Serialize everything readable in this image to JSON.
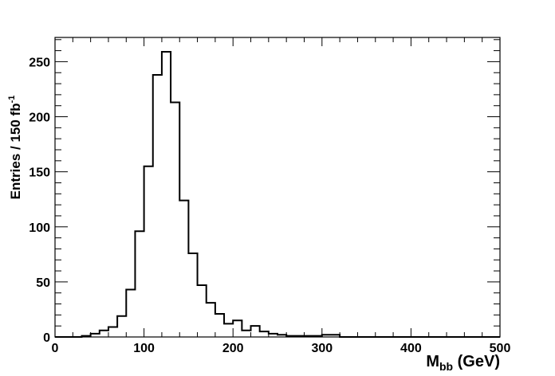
{
  "chart_data": {
    "type": "histogram",
    "title": "",
    "xlabel": {
      "main": "M",
      "sub": "bb",
      "suffix": " (GeV)"
    },
    "ylabel": {
      "main": "Entries / 150 fb",
      "sup": "-1"
    },
    "xlim": [
      0,
      500
    ],
    "ylim": [
      0,
      272
    ],
    "bin_width": 10,
    "x_ticks": [
      0,
      100,
      200,
      300,
      400,
      500
    ],
    "y_ticks": [
      0,
      50,
      100,
      150,
      200,
      250
    ],
    "x_tick_labels": [
      "0",
      "100",
      "200",
      "300",
      "400",
      "500"
    ],
    "y_tick_labels": [
      "0",
      "50",
      "100",
      "150",
      "200",
      "250"
    ],
    "x_minor_step": 20,
    "y_minor_step": 10,
    "grid": false,
    "bin_edges": [
      0,
      10,
      20,
      30,
      40,
      50,
      60,
      70,
      80,
      90,
      100,
      110,
      120,
      130,
      140,
      150,
      160,
      170,
      180,
      190,
      200,
      210,
      220,
      230,
      240,
      250,
      260,
      270,
      280,
      290,
      300,
      310,
      320,
      330,
      340,
      350,
      360,
      370,
      380,
      390,
      400,
      410,
      420,
      430,
      440,
      450,
      460,
      470,
      480,
      490,
      500
    ],
    "values": [
      0,
      0,
      0,
      1,
      3,
      6,
      9,
      19,
      43,
      96,
      155,
      238,
      259,
      213,
      124,
      76,
      47,
      31,
      21,
      12,
      15,
      6,
      10,
      5,
      3,
      2,
      1,
      1,
      1,
      1,
      2,
      2,
      0,
      0,
      0,
      0,
      0,
      0,
      0,
      0,
      0,
      0,
      0,
      0,
      0,
      0,
      0,
      0,
      0,
      0
    ],
    "line_color": "#000000"
  }
}
